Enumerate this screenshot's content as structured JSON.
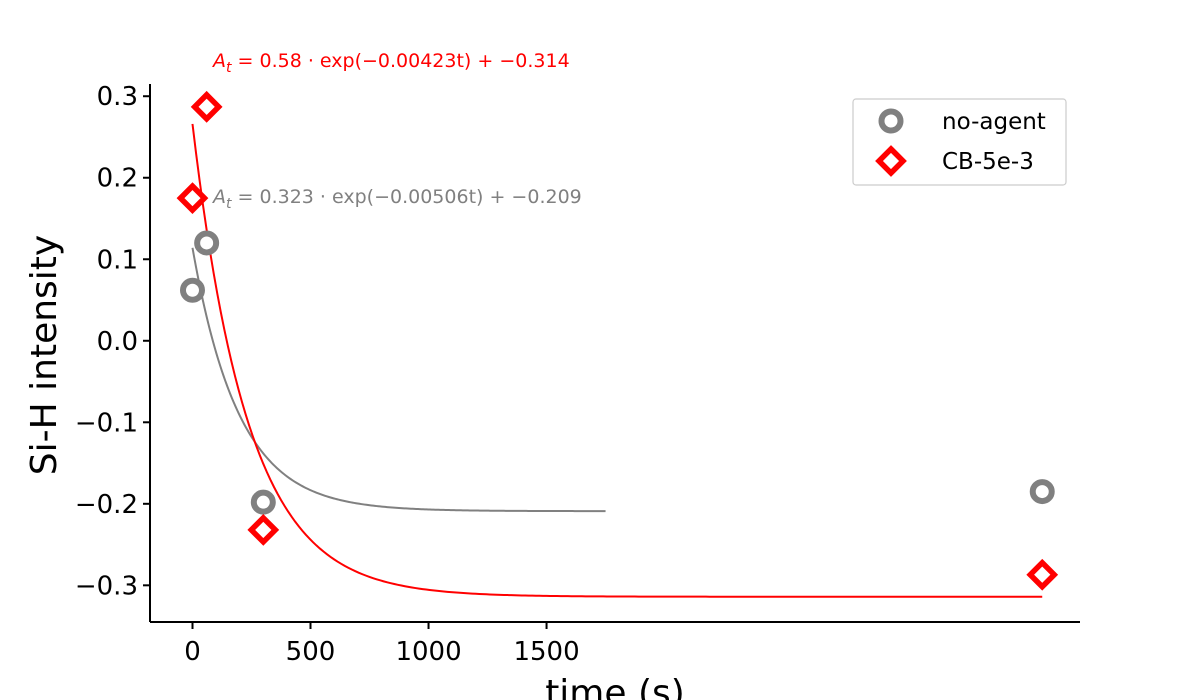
{
  "chart_data": {
    "type": "scatter",
    "title": "",
    "xlabel": "time (s)",
    "ylabel": "Si-H intensity",
    "xlim": [
      -180,
      3760
    ],
    "ylim": [
      -0.345,
      0.315
    ],
    "x_ticks": [
      0,
      500,
      1000,
      1500
    ],
    "x_tick_labels": [
      "0",
      "500",
      "1000",
      "1500"
    ],
    "y_ticks": [
      0.3,
      0.2,
      0.1,
      0.0,
      -0.1,
      -0.2,
      -0.3
    ],
    "y_tick_labels": [
      "0.3",
      "0.2",
      "0.1",
      "0.0",
      "−0.1",
      "−0.2",
      "−0.3"
    ],
    "grid": false,
    "legend_position": "top-right",
    "series": [
      {
        "name": "no-agent",
        "marker": "circle",
        "color": "#808080",
        "x": [
          0,
          60,
          300,
          3600
        ],
        "y": [
          0.062,
          0.12,
          -0.198,
          -0.185
        ],
        "fit": {
          "equation": "A_t = 0.323 · exp(−0.00506t) + −0.209",
          "a": 0.323,
          "k": 0.00506,
          "c": -0.209,
          "x_range": [
            0,
            1750
          ]
        }
      },
      {
        "name": "CB-5e-3",
        "marker": "diamond",
        "color": "#ff0000",
        "x": [
          0,
          60,
          300,
          3600
        ],
        "y": [
          0.175,
          0.287,
          -0.232,
          -0.287
        ],
        "fit": {
          "equation": "A_t = 0.58 · exp(−0.00423t) + −0.314",
          "a": 0.58,
          "k": 0.00423,
          "c": -0.314,
          "x_range": [
            0,
            3600
          ]
        }
      }
    ]
  }
}
